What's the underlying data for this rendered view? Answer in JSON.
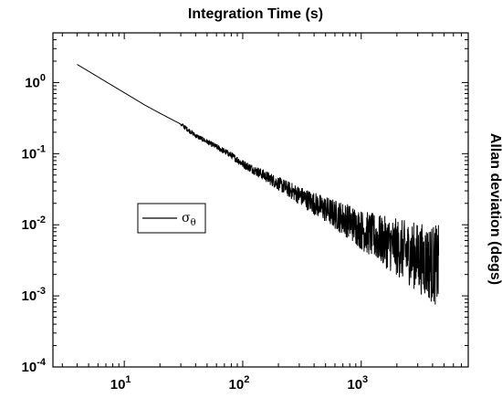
{
  "chart_data": {
    "type": "line",
    "title": "",
    "xlabel": "Integration Time (s)",
    "ylabel": "Allan deviation (degs)",
    "xscale": "log",
    "yscale": "log",
    "xlim": [
      2.5,
      8000
    ],
    "ylim": [
      0.0001,
      5
    ],
    "x_ticks": [
      {
        "value": 10,
        "base": "10",
        "exp": "1"
      },
      {
        "value": 100,
        "base": "10",
        "exp": "2"
      },
      {
        "value": 1000,
        "base": "10",
        "exp": "3"
      }
    ],
    "y_ticks": [
      {
        "value": 0.0001,
        "base": "10",
        "exp": "-4"
      },
      {
        "value": 0.001,
        "base": "10",
        "exp": "-3"
      },
      {
        "value": 0.01,
        "base": "10",
        "exp": "-2"
      },
      {
        "value": 0.1,
        "base": "10",
        "exp": "-1"
      },
      {
        "value": 1,
        "base": "10",
        "exp": "0"
      }
    ],
    "legend": {
      "position": "center-left",
      "label": "σ",
      "subscript": "θ"
    },
    "series": [
      {
        "name": "σθ",
        "color": "#000000",
        "x": [
          4,
          6,
          8,
          10,
          15,
          20,
          30,
          40,
          60,
          80,
          100,
          150,
          200,
          300,
          400,
          600,
          800,
          1000,
          1500,
          2000,
          3000,
          4000,
          4500
        ],
        "y": [
          1.8,
          1.2,
          0.9,
          0.72,
          0.48,
          0.37,
          0.26,
          0.18,
          0.125,
          0.095,
          0.072,
          0.05,
          0.038,
          0.026,
          0.02,
          0.014,
          0.011,
          0.0085,
          0.006,
          0.0048,
          0.0035,
          0.0028,
          0.0026
        ]
      }
    ]
  }
}
